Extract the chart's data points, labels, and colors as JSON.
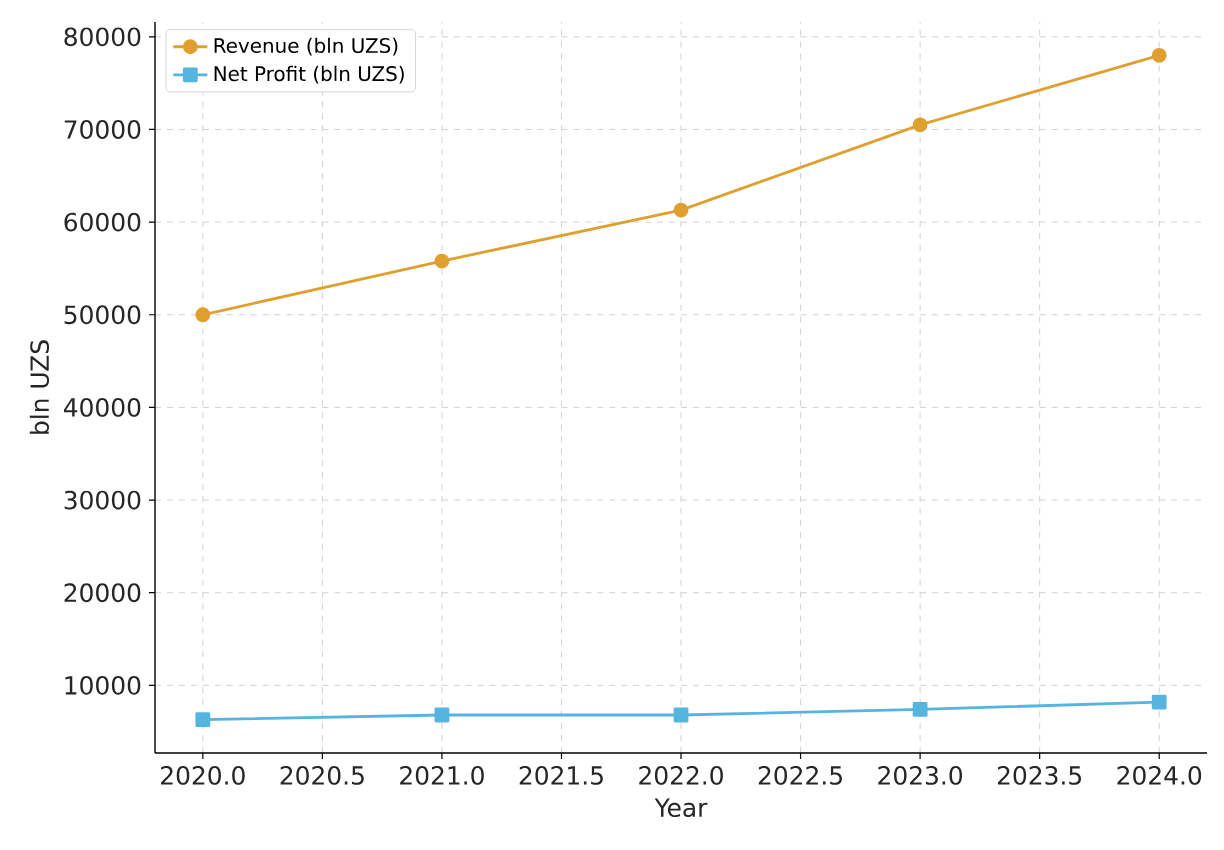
{
  "chart_data": {
    "type": "line",
    "xlabel": "Year",
    "ylabel": "bln UZS",
    "x": [
      2020,
      2021,
      2022,
      2023,
      2024
    ],
    "series": [
      {
        "name": "Revenue (bln UZS)",
        "color": "#e0a030",
        "marker": "circle",
        "values": [
          50000,
          55800,
          61300,
          70500,
          78000
        ]
      },
      {
        "name": "Net Profit (bln UZS)",
        "color": "#56b4e0",
        "marker": "square",
        "values": [
          6300,
          6800,
          6800,
          7400,
          8200
        ]
      }
    ],
    "xlim": [
      2019.8,
      2024.2
    ],
    "xticks": [
      {
        "value": 2020,
        "label": "2020.0"
      },
      {
        "value": 2020.5,
        "label": "2020.5"
      },
      {
        "value": 2021,
        "label": "2021.0"
      },
      {
        "value": 2021.5,
        "label": "2021.5"
      },
      {
        "value": 2022,
        "label": "2022.0"
      },
      {
        "value": 2022.5,
        "label": "2022.5"
      },
      {
        "value": 2023,
        "label": "2023.0"
      },
      {
        "value": 2023.5,
        "label": "2023.5"
      },
      {
        "value": 2024,
        "label": "2024.0"
      }
    ],
    "ylim": [
      2700,
      81600
    ],
    "yticks": [
      10000,
      20000,
      30000,
      40000,
      50000,
      60000,
      70000,
      80000
    ],
    "grid": true,
    "legend": "top left",
    "line_style": "solid"
  }
}
